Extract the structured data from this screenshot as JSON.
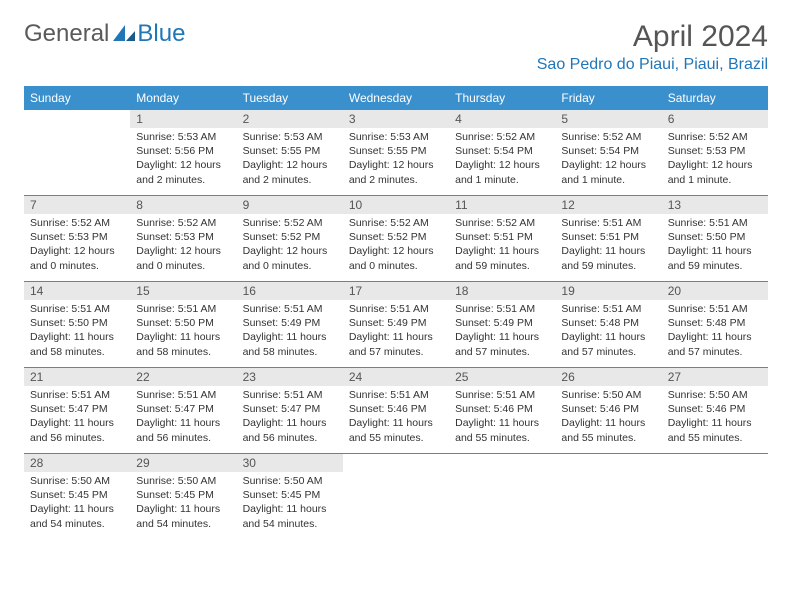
{
  "brand": {
    "part1": "General",
    "part2": "Blue"
  },
  "title": "April 2024",
  "location": "Sao Pedro do Piaui, Piaui, Brazil",
  "colors": {
    "header_bg": "#3a8fcd",
    "accent": "#2176b8",
    "daynum_bg": "#e8e8e8",
    "text": "#333333",
    "muted": "#555555"
  },
  "weekdays": [
    "Sunday",
    "Monday",
    "Tuesday",
    "Wednesday",
    "Thursday",
    "Friday",
    "Saturday"
  ],
  "weeks": [
    [
      null,
      {
        "n": "1",
        "sr": "Sunrise: 5:53 AM",
        "ss": "Sunset: 5:56 PM",
        "dl1": "Daylight: 12 hours",
        "dl2": "and 2 minutes."
      },
      {
        "n": "2",
        "sr": "Sunrise: 5:53 AM",
        "ss": "Sunset: 5:55 PM",
        "dl1": "Daylight: 12 hours",
        "dl2": "and 2 minutes."
      },
      {
        "n": "3",
        "sr": "Sunrise: 5:53 AM",
        "ss": "Sunset: 5:55 PM",
        "dl1": "Daylight: 12 hours",
        "dl2": "and 2 minutes."
      },
      {
        "n": "4",
        "sr": "Sunrise: 5:52 AM",
        "ss": "Sunset: 5:54 PM",
        "dl1": "Daylight: 12 hours",
        "dl2": "and 1 minute."
      },
      {
        "n": "5",
        "sr": "Sunrise: 5:52 AM",
        "ss": "Sunset: 5:54 PM",
        "dl1": "Daylight: 12 hours",
        "dl2": "and 1 minute."
      },
      {
        "n": "6",
        "sr": "Sunrise: 5:52 AM",
        "ss": "Sunset: 5:53 PM",
        "dl1": "Daylight: 12 hours",
        "dl2": "and 1 minute."
      }
    ],
    [
      {
        "n": "7",
        "sr": "Sunrise: 5:52 AM",
        "ss": "Sunset: 5:53 PM",
        "dl1": "Daylight: 12 hours",
        "dl2": "and 0 minutes."
      },
      {
        "n": "8",
        "sr": "Sunrise: 5:52 AM",
        "ss": "Sunset: 5:53 PM",
        "dl1": "Daylight: 12 hours",
        "dl2": "and 0 minutes."
      },
      {
        "n": "9",
        "sr": "Sunrise: 5:52 AM",
        "ss": "Sunset: 5:52 PM",
        "dl1": "Daylight: 12 hours",
        "dl2": "and 0 minutes."
      },
      {
        "n": "10",
        "sr": "Sunrise: 5:52 AM",
        "ss": "Sunset: 5:52 PM",
        "dl1": "Daylight: 12 hours",
        "dl2": "and 0 minutes."
      },
      {
        "n": "11",
        "sr": "Sunrise: 5:52 AM",
        "ss": "Sunset: 5:51 PM",
        "dl1": "Daylight: 11 hours",
        "dl2": "and 59 minutes."
      },
      {
        "n": "12",
        "sr": "Sunrise: 5:51 AM",
        "ss": "Sunset: 5:51 PM",
        "dl1": "Daylight: 11 hours",
        "dl2": "and 59 minutes."
      },
      {
        "n": "13",
        "sr": "Sunrise: 5:51 AM",
        "ss": "Sunset: 5:50 PM",
        "dl1": "Daylight: 11 hours",
        "dl2": "and 59 minutes."
      }
    ],
    [
      {
        "n": "14",
        "sr": "Sunrise: 5:51 AM",
        "ss": "Sunset: 5:50 PM",
        "dl1": "Daylight: 11 hours",
        "dl2": "and 58 minutes."
      },
      {
        "n": "15",
        "sr": "Sunrise: 5:51 AM",
        "ss": "Sunset: 5:50 PM",
        "dl1": "Daylight: 11 hours",
        "dl2": "and 58 minutes."
      },
      {
        "n": "16",
        "sr": "Sunrise: 5:51 AM",
        "ss": "Sunset: 5:49 PM",
        "dl1": "Daylight: 11 hours",
        "dl2": "and 58 minutes."
      },
      {
        "n": "17",
        "sr": "Sunrise: 5:51 AM",
        "ss": "Sunset: 5:49 PM",
        "dl1": "Daylight: 11 hours",
        "dl2": "and 57 minutes."
      },
      {
        "n": "18",
        "sr": "Sunrise: 5:51 AM",
        "ss": "Sunset: 5:49 PM",
        "dl1": "Daylight: 11 hours",
        "dl2": "and 57 minutes."
      },
      {
        "n": "19",
        "sr": "Sunrise: 5:51 AM",
        "ss": "Sunset: 5:48 PM",
        "dl1": "Daylight: 11 hours",
        "dl2": "and 57 minutes."
      },
      {
        "n": "20",
        "sr": "Sunrise: 5:51 AM",
        "ss": "Sunset: 5:48 PM",
        "dl1": "Daylight: 11 hours",
        "dl2": "and 57 minutes."
      }
    ],
    [
      {
        "n": "21",
        "sr": "Sunrise: 5:51 AM",
        "ss": "Sunset: 5:47 PM",
        "dl1": "Daylight: 11 hours",
        "dl2": "and 56 minutes."
      },
      {
        "n": "22",
        "sr": "Sunrise: 5:51 AM",
        "ss": "Sunset: 5:47 PM",
        "dl1": "Daylight: 11 hours",
        "dl2": "and 56 minutes."
      },
      {
        "n": "23",
        "sr": "Sunrise: 5:51 AM",
        "ss": "Sunset: 5:47 PM",
        "dl1": "Daylight: 11 hours",
        "dl2": "and 56 minutes."
      },
      {
        "n": "24",
        "sr": "Sunrise: 5:51 AM",
        "ss": "Sunset: 5:46 PM",
        "dl1": "Daylight: 11 hours",
        "dl2": "and 55 minutes."
      },
      {
        "n": "25",
        "sr": "Sunrise: 5:51 AM",
        "ss": "Sunset: 5:46 PM",
        "dl1": "Daylight: 11 hours",
        "dl2": "and 55 minutes."
      },
      {
        "n": "26",
        "sr": "Sunrise: 5:50 AM",
        "ss": "Sunset: 5:46 PM",
        "dl1": "Daylight: 11 hours",
        "dl2": "and 55 minutes."
      },
      {
        "n": "27",
        "sr": "Sunrise: 5:50 AM",
        "ss": "Sunset: 5:46 PM",
        "dl1": "Daylight: 11 hours",
        "dl2": "and 55 minutes."
      }
    ],
    [
      {
        "n": "28",
        "sr": "Sunrise: 5:50 AM",
        "ss": "Sunset: 5:45 PM",
        "dl1": "Daylight: 11 hours",
        "dl2": "and 54 minutes."
      },
      {
        "n": "29",
        "sr": "Sunrise: 5:50 AM",
        "ss": "Sunset: 5:45 PM",
        "dl1": "Daylight: 11 hours",
        "dl2": "and 54 minutes."
      },
      {
        "n": "30",
        "sr": "Sunrise: 5:50 AM",
        "ss": "Sunset: 5:45 PM",
        "dl1": "Daylight: 11 hours",
        "dl2": "and 54 minutes."
      },
      null,
      null,
      null,
      null
    ]
  ]
}
